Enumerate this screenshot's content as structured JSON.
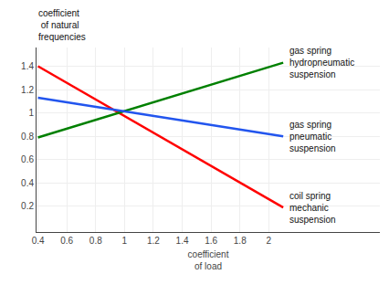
{
  "chart_data": {
    "type": "line",
    "x_label": "coefficient\nof load",
    "y_label": "coefficient\n of natural\nfrequencies",
    "x": [
      0.4,
      2.1
    ],
    "series": [
      {
        "name": "coil spring\nmechanic\nsuspension",
        "color": "#ff0000",
        "values": [
          1.4,
          0.19
        ]
      },
      {
        "name": "gas spring\nhydropneumatic\nsuspension",
        "color": "#008000",
        "values": [
          0.79,
          1.43
        ]
      },
      {
        "name": "gas spring\npneumatic\nsuspension",
        "color": "#2255ee",
        "values": [
          1.13,
          0.8
        ]
      }
    ],
    "xlim": [
      0.39,
      2.77
    ],
    "ylim": [
      -0.02,
      1.56
    ],
    "xticks": [
      0.4,
      0.6,
      0.8,
      1,
      1.2,
      1.4,
      1.6,
      1.8,
      2
    ],
    "yticks": [
      0.2,
      0.4,
      0.6,
      0.8,
      1,
      1.2,
      1.4
    ],
    "grid": true
  }
}
